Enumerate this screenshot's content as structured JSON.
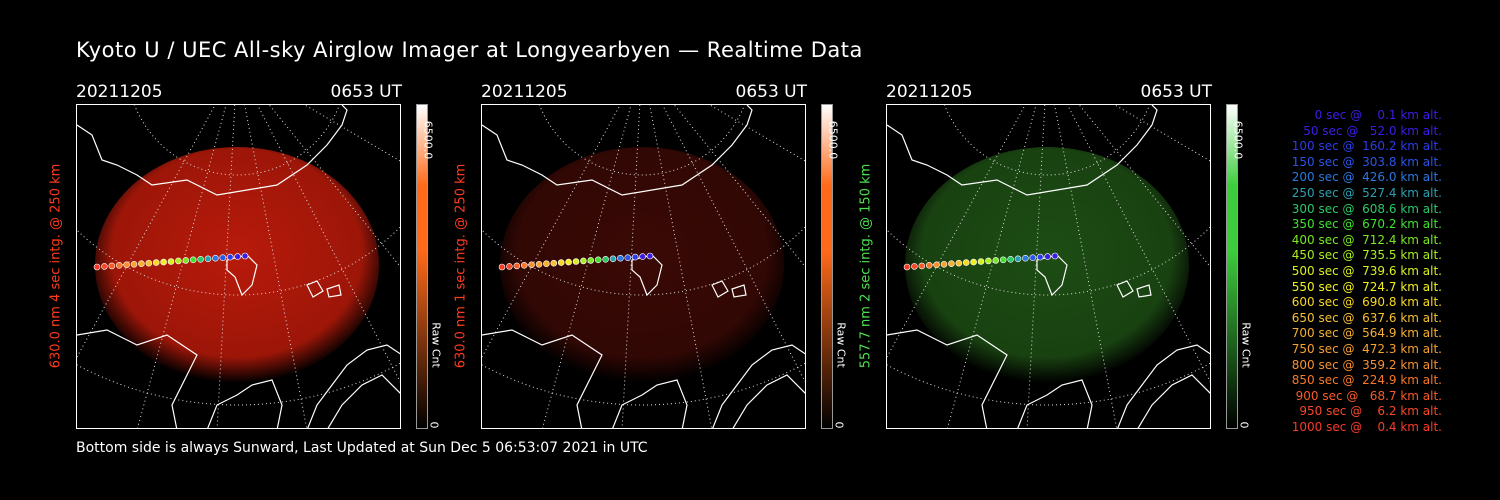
{
  "title": "Kyoto U / UEC All-sky Airglow Imager at Longyearbyen — Realtime Data",
  "footer": "Bottom side is always Sunward, Last Updated at Sun Dec  5 06:53:07 2021 in UTC",
  "panels": [
    {
      "date": "20211205",
      "time": "0653 UT",
      "ylabel": "630.0 nm 4 sec intg. @ 250 km",
      "label_color": "#ff3a1e",
      "cbar_max": "6500.0",
      "cbar_unit": "Raw Cnt",
      "cbar_min": "0",
      "glow": "#b81a0a",
      "cbar_color": "#ff6a1a"
    },
    {
      "date": "20211205",
      "time": "0653 UT",
      "ylabel": "630.0 nm 1 sec intg. @ 250 km",
      "label_color": "#ff3a1e",
      "cbar_max": "6500.0",
      "cbar_unit": "Raw Cnt",
      "cbar_min": "0",
      "glow": "#3a0905",
      "cbar_color": "#ff6a1a"
    },
    {
      "date": "20211205",
      "time": "0653 UT",
      "ylabel": "557.7 nm 2 sec intg. @ 150 km",
      "label_color": "#4ee04e",
      "cbar_max": "6500.0",
      "cbar_unit": "Raw Cnt",
      "cbar_min": "0",
      "glow": "#1d4d14",
      "cbar_color": "#3ccd3c"
    }
  ],
  "legend": [
    {
      "text": "   0 sec @    0.1 km alt.",
      "color": "#3b1de8"
    },
    {
      "text": "  50 sec @   52.0 km alt.",
      "color": "#3b1de8"
    },
    {
      "text": " 100 sec @  160.2 km alt.",
      "color": "#2a3de8"
    },
    {
      "text": " 150 sec @  303.8 km alt.",
      "color": "#2a55e8"
    },
    {
      "text": " 200 sec @  426.0 km alt.",
      "color": "#2a78e0"
    },
    {
      "text": " 250 sec @  527.4 km alt.",
      "color": "#2aa0b0"
    },
    {
      "text": " 300 sec @  608.6 km alt.",
      "color": "#2ac868"
    },
    {
      "text": " 350 sec @  670.2 km alt.",
      "color": "#40e030"
    },
    {
      "text": " 400 sec @  712.4 km alt.",
      "color": "#78e820"
    },
    {
      "text": " 450 sec @  735.5 km alt.",
      "color": "#a8ee20"
    },
    {
      "text": " 500 sec @  739.6 km alt.",
      "color": "#d8f020"
    },
    {
      "text": " 550 sec @  724.7 km alt.",
      "color": "#f0f020"
    },
    {
      "text": " 600 sec @  690.8 km alt.",
      "color": "#f8d820"
    },
    {
      "text": " 650 sec @  637.6 km alt.",
      "color": "#f8c030"
    },
    {
      "text": " 700 sec @  564.9 km alt.",
      "color": "#f8b030"
    },
    {
      "text": " 750 sec @  472.3 km alt.",
      "color": "#f8a030"
    },
    {
      "text": " 800 sec @  359.2 km alt.",
      "color": "#f89030"
    },
    {
      "text": " 850 sec @  224.9 km alt.",
      "color": "#f87828"
    },
    {
      "text": " 900 sec @   68.7 km alt.",
      "color": "#f85a28"
    },
    {
      "text": " 950 sec @    6.2 km alt.",
      "color": "#f84828"
    },
    {
      "text": "1000 sec @    0.4 km alt.",
      "color": "#f83a28"
    }
  ]
}
